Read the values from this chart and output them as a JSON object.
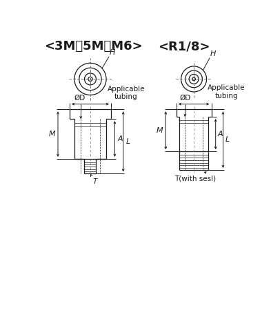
{
  "bg_color": "#ffffff",
  "line_color": "#1a1a1a",
  "title_left": "<3M、5M、M6>",
  "title_right": "<R1/8>",
  "label_H": "H",
  "label_OD": "ØD",
  "label_M": "M",
  "label_A": "A",
  "label_L": "L",
  "label_T_left": "T",
  "label_T_right": "T(with sesl)",
  "label_applicable": "Applicable\ntubing",
  "font_size_title": 13,
  "font_size_label": 8,
  "font_size_dim": 7.5
}
